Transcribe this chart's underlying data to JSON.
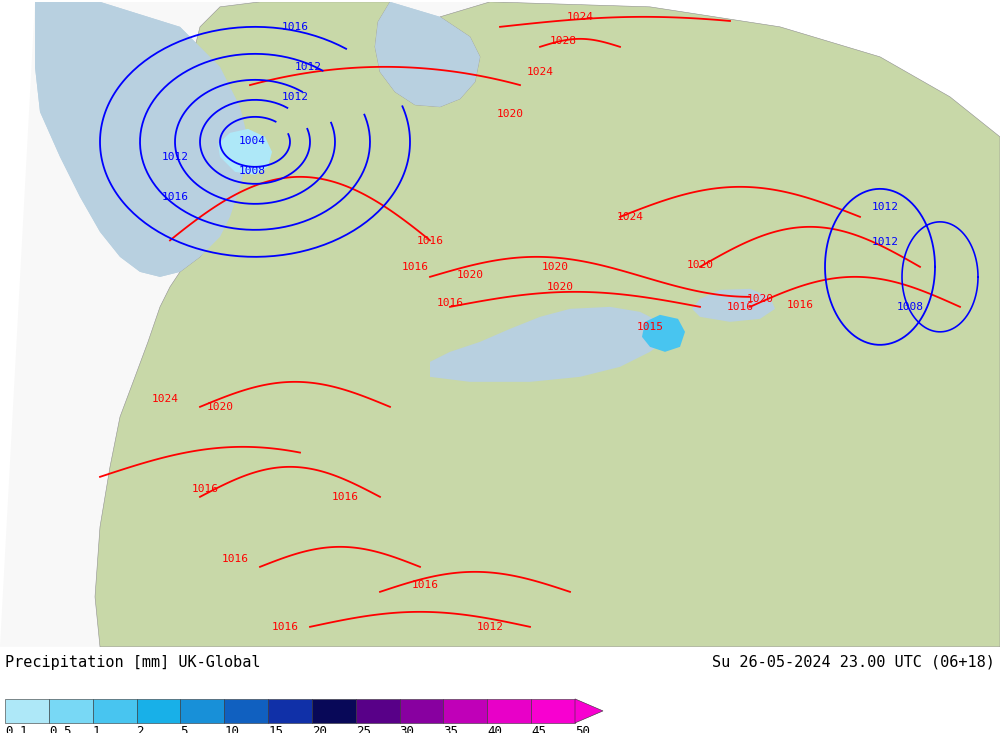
{
  "title_left": "Precipitation [mm] UK-Global",
  "title_right": "Su 26-05-2024 23.00 UTC (06+18)",
  "colorbar_colors": [
    "#aee8f8",
    "#78d8f5",
    "#48c5f0",
    "#18b0e8",
    "#1890d8",
    "#1060c0",
    "#1030a8",
    "#080858",
    "#580088",
    "#8800a0",
    "#c000b8",
    "#e800c8",
    "#f800d0"
  ],
  "colorbar_labels": [
    "0.1",
    "0.5",
    "1",
    "2",
    "5",
    "10",
    "15",
    "20",
    "25",
    "30",
    "35",
    "40",
    "45",
    "50"
  ],
  "background_color": "#b8b8a0",
  "domain_color": "#f8f8f8",
  "sea_color": "#b8d0e0",
  "land_color": "#c8d8a8",
  "border_color": "#909090",
  "label_fontsize": 11,
  "tick_fontsize": 9,
  "isobar_fontsize": 8,
  "red_isobar_color": "red",
  "blue_isobar_color": "blue",
  "isobar_lw": 1.3
}
